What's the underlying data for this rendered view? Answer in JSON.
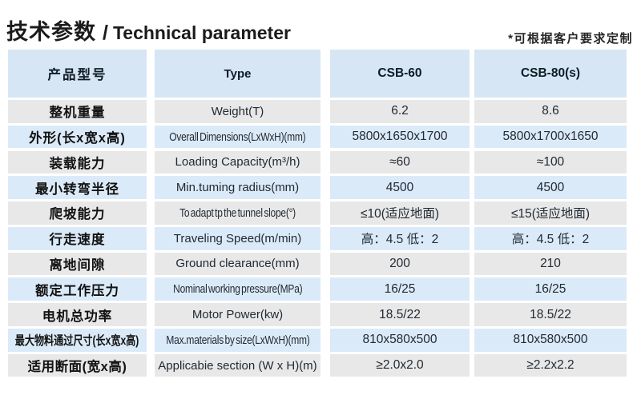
{
  "header": {
    "title_zh": "技术参数",
    "title_sep": "/",
    "title_en": "Technical parameter",
    "note": "*可根据客户要求定制"
  },
  "table": {
    "columns": {
      "model_zh": "产品型号",
      "model_en": "Type",
      "csb60": "CSB-60",
      "csb80": "CSB-80(s)"
    },
    "rows": [
      {
        "zh": "整机重量",
        "en": "Weight(T)",
        "csb60": "6.2",
        "csb80": "8.6"
      },
      {
        "zh": "外形(长x宽x高)",
        "en": "Overall Dimensions(LxWxH)(mm)",
        "csb60": "5800x1650x1700",
        "csb80": "5800x1700x1650"
      },
      {
        "zh": "装载能力",
        "en": "Loading Capacity(m³/h)",
        "csb60": "≈60",
        "csb80": "≈100"
      },
      {
        "zh": "最小转弯半径",
        "en": "Min.tuming radius(mm)",
        "csb60": "4500",
        "csb80": "4500"
      },
      {
        "zh": "爬坡能力",
        "en": "To adapt tp the tunnel slope(°)",
        "csb60": "≤10(适应地面)",
        "csb80": "≤15(适应地面)"
      },
      {
        "zh": "行走速度",
        "en": "Traveling Speed(m/min)",
        "csb60": "高：4.5 低：2",
        "csb80": "高：4.5 低：2"
      },
      {
        "zh": "离地间隙",
        "en": "Ground clearance(mm)",
        "csb60": "200",
        "csb80": "210"
      },
      {
        "zh": "额定工作压力",
        "en": "Nominal working pressure(MPa)",
        "csb60": "16/25",
        "csb80": "16/25"
      },
      {
        "zh": "电机总功率",
        "en": "Motor Power(kw)",
        "csb60": "18.5/22",
        "csb80": "18.5/22"
      },
      {
        "zh": "最大物料通过尺寸(长x宽x高)",
        "en": "Max.materials by size(LxWxH)(mm)",
        "csb60": "810x580x500",
        "csb80": "810x580x500"
      },
      {
        "zh": "适用断面(宽x高)",
        "en": "Applicabie section (W x H)(m)",
        "csb60": "≥2.0x2.0",
        "csb80": "≥2.2x2.2"
      }
    ]
  },
  "colors": {
    "header_bg": "#d6e6f4",
    "row_blue": "#dbeaf8",
    "row_gray": "#e8e8e8",
    "text_dark": "#222a33",
    "page_bg": "#ffffff"
  }
}
